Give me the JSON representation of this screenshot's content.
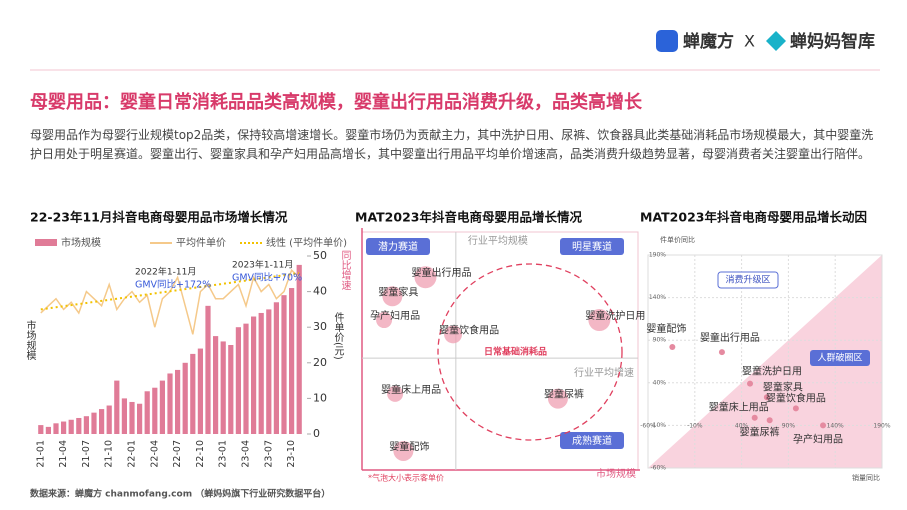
{
  "header": {
    "brand1": "蝉魔方",
    "separator": "X",
    "brand2": "蝉妈妈智库"
  },
  "title": "母婴用品：婴童日常消耗品品类高规模，婴童出行用品消费升级，品类高增长",
  "intro": "母婴用品作为母婴行业规模top2品类，保持较高增速增长。婴童市场仍为贡献主力，其中洗护日用、尿裤、饮食器具此类基础消耗品市场规模最大，其中婴童洗护日用处于明星赛道。婴童出行、婴童家具和孕产妇用品高增长，其中婴童出行用品平均单价增速高，品类消费升级趋势显著，母婴消费者关注婴童出行陪伴。",
  "source": "数据来源：蝉魔方 chanmofang.com （蝉妈妈旗下行业研究数据平台）",
  "chart_data": [
    {
      "type": "bar",
      "title": "22-23年11月抖音电商母婴用品市场增长情况",
      "categories": [
        "21-01",
        null,
        null,
        "21-04",
        null,
        null,
        "21-07",
        null,
        null,
        "21-10",
        null,
        null,
        "22-01",
        null,
        null,
        "22-04",
        null,
        null,
        "22-07",
        null,
        null,
        "22-10",
        null,
        null,
        "23-01",
        null,
        null,
        "23-04",
        null,
        null,
        "23-07",
        null,
        null,
        "23-10",
        null
      ],
      "ylabel": "市场规模",
      "y2label": "件单价(元)",
      "ylim": [
        0,
        100
      ],
      "y2lim": [
        0,
        50
      ],
      "y2ticks": [
        0,
        10,
        20,
        30,
        40,
        50
      ],
      "series": [
        {
          "name": "市场规模",
          "color": "#e07b97",
          "kind": "bar",
          "values": [
            5,
            4,
            6,
            7,
            8,
            9,
            10,
            12,
            14,
            16,
            30,
            20,
            18,
            17,
            24,
            26,
            30,
            34,
            36,
            40,
            45,
            48,
            72,
            55,
            52,
            50,
            60,
            62,
            66,
            68,
            70,
            74,
            78,
            82,
            95
          ]
        },
        {
          "name": "平均件单价",
          "color": "#f5c98a",
          "kind": "line",
          "axis": "y2",
          "values": [
            34,
            36,
            38,
            35,
            37,
            34,
            40,
            38,
            36,
            42,
            35,
            38,
            40,
            37,
            39,
            30,
            38,
            40,
            44,
            36,
            28,
            40,
            42,
            38,
            38,
            40,
            42,
            36,
            44,
            40,
            42,
            38,
            40,
            46,
            44
          ]
        },
        {
          "name": "线性 (平均件单价)",
          "color": "#f2c200",
          "kind": "trend",
          "axis": "y2",
          "values": [
            35,
            35.3,
            35.6,
            35.9,
            36.2,
            36.5,
            36.8,
            37.1,
            37.4,
            37.7,
            38,
            38.3,
            38.6,
            38.9,
            39.2,
            39.5,
            39.8,
            40.1,
            40.4,
            40.7,
            41,
            41.3,
            41.6,
            41.9,
            42.2,
            42.5,
            42.8,
            43.1,
            43.4,
            43.7,
            44,
            44.3,
            44.6,
            44.9,
            45.2
          ]
        }
      ],
      "annotations": [
        {
          "line1": "2022年1-11月",
          "line2": "GMV同比+172%"
        },
        {
          "line1": "2023年1-11月",
          "line2": "GMV同比+70%"
        }
      ]
    },
    {
      "type": "bubble",
      "title": "MAT2023年抖音电商母婴用品增长情况",
      "xlabel": "市场规模",
      "ylabel": "同比增速",
      "xlim": [
        0,
        100
      ],
      "ylim": [
        0,
        100
      ],
      "avg_x": 34,
      "avg_x_label": "行业平均规模",
      "avg_y": 47,
      "avg_y_label": "行业平均增速",
      "quadrants": [
        "潜力赛道",
        "明星赛道",
        "成熟赛道"
      ],
      "cluster_label": "日常基础消耗品",
      "note": "*气泡大小表示客单价",
      "labels": [
        "婴童出行用品",
        "婴童家具",
        "孕产妇用品",
        "婴童饮食用品",
        "婴童洗护日用",
        "婴童床上用品",
        "婴童尿裤",
        "婴童配饰"
      ],
      "x": [
        23,
        11,
        8,
        33,
        86,
        12,
        71,
        15
      ],
      "y": [
        81,
        73,
        63,
        57,
        63,
        32,
        30,
        8
      ],
      "size": [
        11,
        10,
        8,
        9,
        11,
        8,
        10,
        10
      ],
      "color": "#ef9fb2"
    },
    {
      "type": "scatter",
      "title": "MAT2023年抖音电商母婴用品增长动因",
      "xlabel": "销量同比",
      "ylabel": "件单价同比",
      "xlim": [
        -60,
        190
      ],
      "ylim": [
        -60,
        190
      ],
      "xticks": [
        {
          "value": -60,
          "label": "-60%"
        },
        {
          "value": -10,
          "label": "-10%"
        },
        {
          "value": 40,
          "label": "40%"
        },
        {
          "value": 90,
          "label": "90%"
        },
        {
          "value": 140,
          "label": "140%"
        },
        {
          "value": 190,
          "label": "190%"
        }
      ],
      "yticks": [
        {
          "value": -60,
          "label": "-60%"
        },
        {
          "value": -10,
          "label": "-10%"
        },
        {
          "value": 40,
          "label": "40%"
        },
        {
          "value": 90,
          "label": "90%"
        },
        {
          "value": 140,
          "label": "140%"
        },
        {
          "value": 190,
          "label": "190%"
        }
      ],
      "zones": [
        "消费升级区",
        "人群破圈区"
      ],
      "labels": [
        "婴童配饰",
        "婴童出行用品",
        "婴童洗护日用",
        "婴童家具",
        "婴童床上用品",
        "婴童饮食用品",
        "婴童尿裤",
        "孕产妇用品"
      ],
      "x": [
        -34,
        19,
        49,
        67,
        54,
        98,
        70,
        127
      ],
      "y": [
        82,
        76,
        39,
        23,
        -1,
        10,
        -4,
        -10
      ],
      "color": "#e58aa0"
    }
  ]
}
